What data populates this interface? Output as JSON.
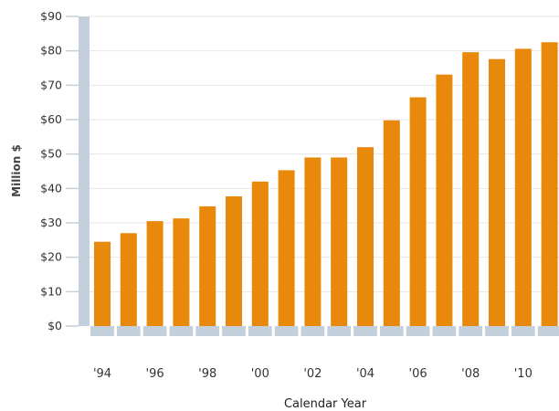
{
  "chart_data": {
    "type": "bar",
    "title": "",
    "xlabel": "Calendar Year",
    "ylabel": "Million $",
    "ylim": [
      0,
      90
    ],
    "y_ticks": [
      "$0",
      "$10",
      "$20",
      "$30",
      "$40",
      "$50",
      "$60",
      "$70",
      "$80",
      "$90"
    ],
    "categories": [
      "1994",
      "1995",
      "1996",
      "1997",
      "1998",
      "1999",
      "2000",
      "2001",
      "2002",
      "2003",
      "2004",
      "2005",
      "2006",
      "2007",
      "2008",
      "2009",
      "2010",
      "2011"
    ],
    "x_tick_labels": [
      "'94",
      "",
      "'96",
      "",
      "'98",
      "",
      "'00",
      "",
      "'02",
      "",
      "'04",
      "",
      "'06",
      "",
      "'08",
      "",
      "'10",
      ""
    ],
    "values": [
      24.5,
      27,
      30.5,
      31.3,
      34.8,
      37.7,
      42,
      45.3,
      49,
      49,
      52,
      59.8,
      66.5,
      73.1,
      79.6,
      77.6,
      80.6,
      82.5
    ],
    "bar_color": "#e8890c",
    "axis_color": "#c3d0dc",
    "gridlines": true
  }
}
